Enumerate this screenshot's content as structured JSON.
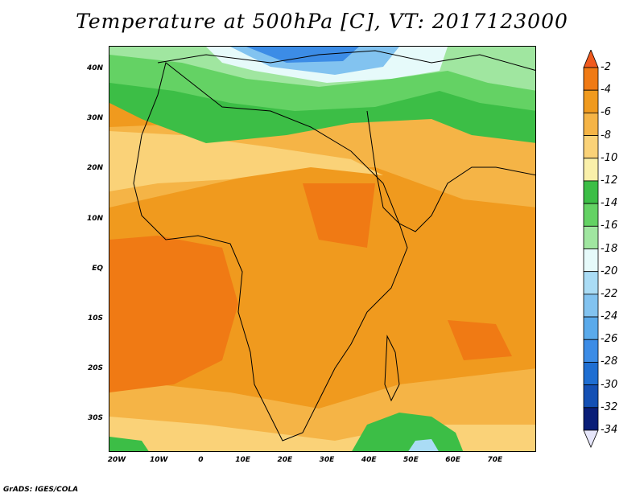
{
  "title": "Temperature at 500hPa [C], VT: 2017123000",
  "credit": "GrADS: IGES/COLA",
  "lat_labels": [
    "40N",
    "30N",
    "20N",
    "10N",
    "EQ",
    "10S",
    "20S",
    "30S"
  ],
  "lon_labels": [
    "20W",
    "10W",
    "0",
    "10E",
    "20E",
    "30E",
    "40E",
    "50E",
    "60E",
    "70E"
  ],
  "colorbar": {
    "labels": [
      "-2",
      "-4",
      "-6",
      "-8",
      "-10",
      "-12",
      "-14",
      "-16",
      "-18",
      "-20",
      "-22",
      "-24",
      "-26",
      "-28",
      "-30",
      "-32",
      "-34"
    ],
    "colors": [
      "#f05a1e",
      "#f07a14",
      "#f09a1e",
      "#f5b446",
      "#fad278",
      "#faf0aa",
      "#3cbe46",
      "#64d264",
      "#a0e6a0",
      "#e6fafa",
      "#aadcf5",
      "#82c3f0",
      "#5aaaeb",
      "#3c8ce6",
      "#1e6ed2",
      "#1450b4",
      "#0a1e78",
      "#e6e6fa"
    ]
  }
}
